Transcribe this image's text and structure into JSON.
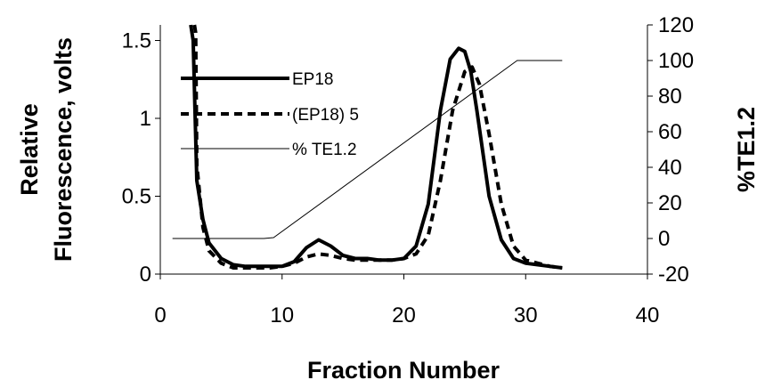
{
  "chart_data": {
    "type": "line",
    "xlabel": "Fraction Number",
    "ylabel_left": [
      "Relative",
      "Fluorescence, volts"
    ],
    "ylabel_right": "%TE1.2",
    "x_range": [
      0,
      40
    ],
    "x_ticks": [
      0,
      10,
      20,
      30,
      40
    ],
    "y_left_range": [
      0,
      1.6
    ],
    "y_left_ticks": [
      0,
      0.5,
      1,
      1.5
    ],
    "y_left_tick_labels": [
      "0",
      "0.5",
      "1",
      "1.5"
    ],
    "y_right_range": [
      -20,
      120
    ],
    "y_right_ticks": [
      -20,
      0,
      20,
      40,
      60,
      80,
      100,
      120
    ],
    "grid": false,
    "legend_position": "upper-left",
    "series": [
      {
        "name": "EP18",
        "axis": "left",
        "style": "solid-thick",
        "points": [
          [
            2.5,
            1.6
          ],
          [
            2.7,
            1.5
          ],
          [
            3.0,
            0.6
          ],
          [
            3.5,
            0.35
          ],
          [
            4.0,
            0.2
          ],
          [
            5.0,
            0.1
          ],
          [
            6.0,
            0.06
          ],
          [
            7.0,
            0.05
          ],
          [
            8.0,
            0.05
          ],
          [
            9.0,
            0.05
          ],
          [
            10.0,
            0.05
          ],
          [
            11.0,
            0.08
          ],
          [
            12.0,
            0.17
          ],
          [
            13.0,
            0.22
          ],
          [
            14.0,
            0.18
          ],
          [
            15.0,
            0.12
          ],
          [
            16.0,
            0.1
          ],
          [
            17.0,
            0.1
          ],
          [
            18.0,
            0.09
          ],
          [
            19.0,
            0.09
          ],
          [
            20.0,
            0.1
          ],
          [
            21.0,
            0.18
          ],
          [
            22.0,
            0.45
          ],
          [
            23.0,
            1.05
          ],
          [
            23.8,
            1.38
          ],
          [
            24.5,
            1.45
          ],
          [
            25.0,
            1.43
          ],
          [
            25.5,
            1.3
          ],
          [
            26.0,
            1.05
          ],
          [
            27.0,
            0.5
          ],
          [
            28.0,
            0.22
          ],
          [
            29.0,
            0.1
          ],
          [
            30.0,
            0.07
          ],
          [
            31.0,
            0.06
          ],
          [
            32.0,
            0.05
          ],
          [
            33.0,
            0.04
          ]
        ]
      },
      {
        "name": "(EP18) 5",
        "axis": "left",
        "style": "dashed-thick",
        "points": [
          [
            2.8,
            1.6
          ],
          [
            2.9,
            1.55
          ],
          [
            3.0,
            0.7
          ],
          [
            3.5,
            0.3
          ],
          [
            4.0,
            0.15
          ],
          [
            5.0,
            0.07
          ],
          [
            6.0,
            0.04
          ],
          [
            7.0,
            0.04
          ],
          [
            8.0,
            0.04
          ],
          [
            9.0,
            0.04
          ],
          [
            10.0,
            0.05
          ],
          [
            11.0,
            0.07
          ],
          [
            12.0,
            0.11
          ],
          [
            13.0,
            0.13
          ],
          [
            14.0,
            0.12
          ],
          [
            15.0,
            0.1
          ],
          [
            16.0,
            0.09
          ],
          [
            17.0,
            0.09
          ],
          [
            18.0,
            0.09
          ],
          [
            19.0,
            0.09
          ],
          [
            20.0,
            0.1
          ],
          [
            21.0,
            0.13
          ],
          [
            22.0,
            0.25
          ],
          [
            23.0,
            0.6
          ],
          [
            24.0,
            1.05
          ],
          [
            25.0,
            1.3
          ],
          [
            25.6,
            1.33
          ],
          [
            26.2,
            1.22
          ],
          [
            27.0,
            0.9
          ],
          [
            28.0,
            0.45
          ],
          [
            29.0,
            0.18
          ],
          [
            30.0,
            0.09
          ],
          [
            31.0,
            0.07
          ],
          [
            32.0,
            0.05
          ],
          [
            33.0,
            0.04
          ]
        ]
      },
      {
        "name": "% TE1.2",
        "axis": "right",
        "style": "solid-thin",
        "points": [
          [
            1,
            0
          ],
          [
            8.5,
            0
          ],
          [
            9.3,
            0.5
          ],
          [
            29.3,
            100
          ],
          [
            33,
            100
          ]
        ]
      }
    ]
  }
}
